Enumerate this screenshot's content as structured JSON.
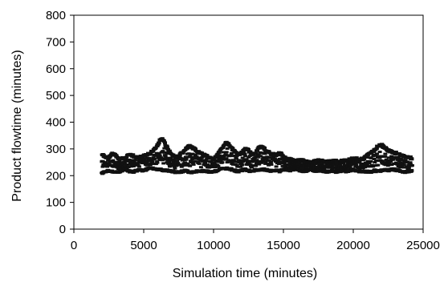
{
  "chart_data": {
    "type": "scatter",
    "title": "",
    "xlabel": "Simulation time (minutes)",
    "ylabel": "Product flowtime (minutes)",
    "xlim": [
      0,
      25000
    ],
    "ylim": [
      0,
      800
    ],
    "x_ticks": [
      0,
      5000,
      10000,
      15000,
      20000,
      25000
    ],
    "x_tick_labels": [
      "0",
      "5000",
      "10000",
      "15000",
      "20000",
      "25000"
    ],
    "y_ticks": [
      0,
      100,
      200,
      300,
      400,
      500,
      600,
      700,
      800
    ],
    "y_tick_labels": [
      "0",
      "100",
      "200",
      "300",
      "400",
      "500",
      "600",
      "700",
      "800"
    ],
    "grid": false,
    "legend": "none",
    "marker_color": "#111111",
    "x_range_of_points": [
      2000,
      24200
    ],
    "series": [
      {
        "x": [
          2000,
          2250,
          2500,
          2750,
          3000,
          3250,
          3500,
          3750,
          4000,
          4250,
          4500,
          4750,
          5000,
          5250,
          5500,
          5750,
          6000,
          6250,
          6500,
          6750,
          7000,
          7250,
          7500,
          7750,
          8000,
          8250,
          8500,
          8750,
          9000,
          9250,
          9500,
          9750,
          10000,
          10250,
          10500,
          10750,
          11000,
          11250,
          11500,
          11750,
          12000,
          12250,
          12500,
          12750,
          13000,
          13250,
          13500,
          13750,
          14000,
          14250,
          14500,
          14750,
          15000,
          15250,
          15500,
          15750,
          16000,
          16250,
          16500,
          16750,
          17000,
          17250,
          17500,
          17750,
          18000,
          18250,
          18500,
          18750,
          19000,
          19250,
          19500,
          19750,
          20000,
          20250,
          20500,
          20750,
          21000,
          21250,
          21500,
          21750,
          22000,
          22250,
          22500,
          22750,
          23000,
          23250,
          23500,
          23750,
          24000,
          24200
        ],
        "lower": [
          205,
          210,
          215,
          212,
          208,
          210,
          215,
          220,
          212,
          210,
          215,
          218,
          215,
          220,
          225,
          222,
          220,
          218,
          215,
          215,
          212,
          210,
          208,
          212,
          215,
          210,
          208,
          212,
          210,
          215,
          212,
          210,
          210,
          215,
          220,
          225,
          222,
          220,
          215,
          212,
          215,
          220,
          215,
          212,
          218,
          215,
          220,
          218,
          215,
          212,
          215,
          212,
          220,
          218,
          215,
          220,
          218,
          215,
          212,
          215,
          218,
          215,
          212,
          215,
          210,
          212,
          215,
          210,
          212,
          215,
          212,
          215,
          218,
          215,
          212,
          210,
          212,
          210,
          215,
          212,
          215,
          218,
          215,
          220,
          218,
          215,
          212,
          210,
          212,
          215
        ],
        "upper": [
          285,
          275,
          270,
          290,
          280,
          265,
          270,
          275,
          285,
          280,
          270,
          275,
          280,
          285,
          290,
          300,
          320,
          345,
          330,
          300,
          285,
          270,
          280,
          290,
          305,
          315,
          310,
          300,
          290,
          285,
          280,
          270,
          265,
          280,
          300,
          320,
          330,
          310,
          295,
          280,
          290,
          305,
          300,
          285,
          290,
          310,
          315,
          300,
          290,
          285,
          280,
          290,
          275,
          270,
          265,
          260,
          262,
          265,
          260,
          258,
          255,
          258,
          262,
          260,
          255,
          258,
          262,
          260,
          258,
          262,
          260,
          265,
          270,
          268,
          265,
          270,
          280,
          290,
          300,
          315,
          320,
          310,
          300,
          295,
          290,
          285,
          280,
          275,
          272,
          270
        ]
      }
    ]
  }
}
